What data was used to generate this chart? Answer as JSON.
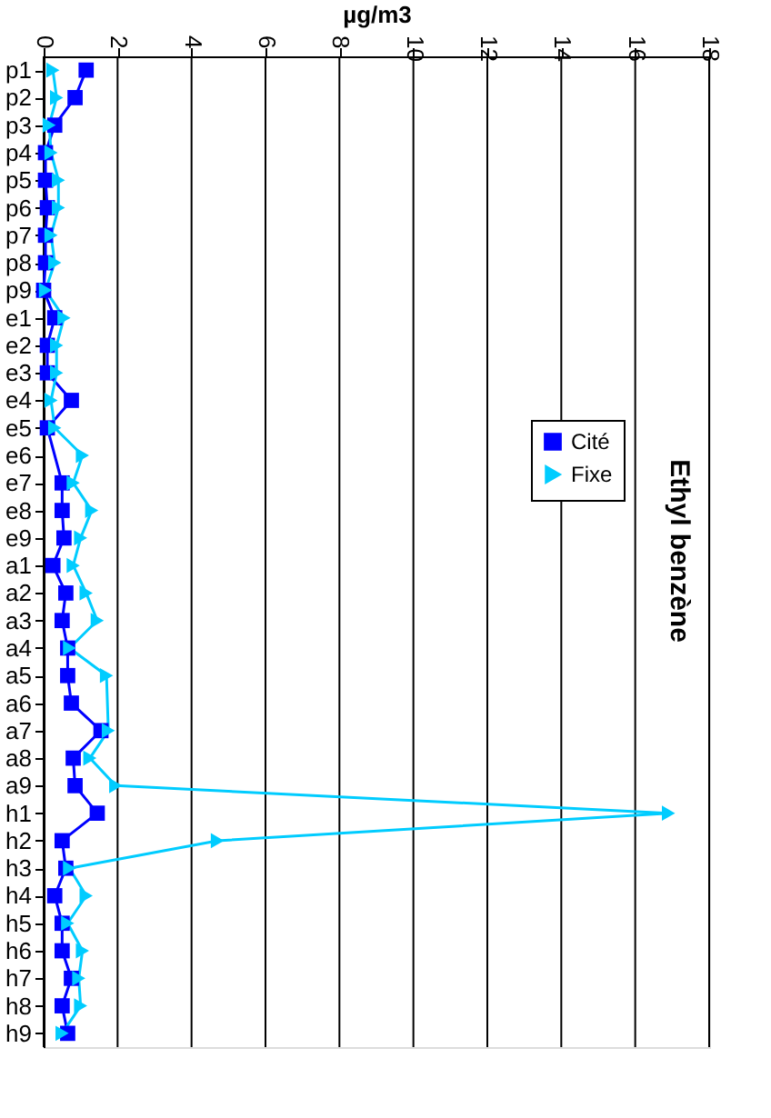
{
  "chart_data": {
    "type": "line",
    "title": "Ethyl benzène",
    "xlabel": "µg/m3",
    "orientation": "horizontal",
    "categories": [
      "p1",
      "p2",
      "p3",
      "p4",
      "p5",
      "p6",
      "p7",
      "p8",
      "p9",
      "e1",
      "e2",
      "e3",
      "e4",
      "e5",
      "e6",
      "e7",
      "e8",
      "e9",
      "a1",
      "a2",
      "a3",
      "a4",
      "a5",
      "a6",
      "a7",
      "a8",
      "a9",
      "h1",
      "h2",
      "h3",
      "h4",
      "h5",
      "h6",
      "h7",
      "h8",
      "h9"
    ],
    "series": [
      {
        "name": "Cité",
        "color": "#0000ff",
        "marker": "square",
        "values": [
          1.15,
          0.85,
          0.3,
          0.05,
          0.05,
          0.1,
          0.05,
          0.05,
          0.0,
          0.3,
          0.1,
          0.1,
          0.75,
          0.1,
          null,
          0.5,
          0.5,
          0.55,
          0.25,
          0.6,
          0.5,
          0.65,
          0.65,
          0.75,
          1.55,
          0.8,
          0.85,
          1.45,
          0.5,
          0.6,
          0.3,
          0.5,
          0.5,
          0.75,
          0.5,
          0.65
        ]
      },
      {
        "name": "Fixe",
        "color": "#00ccff",
        "marker": "triangle",
        "values": [
          0.25,
          0.35,
          0.15,
          0.2,
          0.4,
          0.4,
          0.2,
          0.3,
          0.05,
          0.55,
          0.35,
          0.35,
          0.2,
          0.3,
          1.05,
          0.8,
          1.3,
          1.0,
          0.8,
          1.15,
          1.45,
          0.7,
          1.7,
          null,
          1.75,
          1.25,
          1.95,
          16.9,
          4.7,
          0.7,
          1.15,
          0.65,
          1.05,
          0.95,
          1.0,
          0.5
        ]
      }
    ],
    "xlim": [
      0,
      18
    ],
    "xticks": [
      0,
      2,
      4,
      6,
      8,
      10,
      12,
      14,
      16,
      18
    ],
    "grid": "x",
    "legend": "right",
    "line_style": "solid"
  }
}
